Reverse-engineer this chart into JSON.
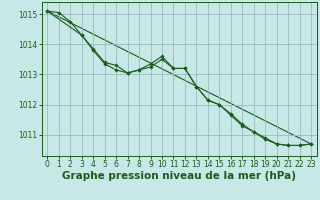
{
  "bg_color": "#c8e8e8",
  "grid_color": "#99bbbb",
  "line_color": "#1a5c1a",
  "xlabel": "Graphe pression niveau de la mer (hPa)",
  "xlabel_fontsize": 7.5,
  "tick_fontsize": 5.5,
  "xlim": [
    -0.5,
    23.5
  ],
  "ylim": [
    1010.3,
    1015.4
  ],
  "yticks": [
    1011,
    1012,
    1013,
    1014,
    1015
  ],
  "xticks": [
    0,
    1,
    2,
    3,
    4,
    5,
    6,
    7,
    8,
    9,
    10,
    11,
    12,
    13,
    14,
    15,
    16,
    17,
    18,
    19,
    20,
    21,
    22,
    23
  ],
  "line1_x": [
    0,
    1,
    2,
    3,
    4,
    5,
    6,
    7,
    8,
    9,
    10,
    11,
    12,
    13,
    14,
    15,
    16,
    17,
    18,
    19,
    20,
    21,
    22,
    23
  ],
  "line1_y": [
    1015.1,
    1015.05,
    1014.75,
    1014.3,
    1013.8,
    1013.35,
    1013.15,
    1013.05,
    1013.15,
    1013.25,
    1013.5,
    1013.2,
    1013.2,
    1012.6,
    1012.15,
    1012.0,
    1011.65,
    1011.3,
    1011.1,
    1010.85,
    1010.7,
    1010.65,
    1010.65,
    1010.7
  ],
  "line2_x": [
    0,
    3,
    4,
    5,
    6,
    7,
    8,
    9,
    10,
    11,
    12,
    13,
    14,
    15,
    16,
    17,
    18,
    19,
    20,
    21,
    22,
    23
  ],
  "line2_y": [
    1015.1,
    1014.3,
    1013.85,
    1013.4,
    1013.3,
    1013.05,
    1013.15,
    1013.35,
    1013.6,
    1013.2,
    1013.2,
    1012.6,
    1012.15,
    1012.0,
    1011.7,
    1011.35,
    1011.1,
    1010.9,
    1010.7,
    1010.65,
    1010.65,
    1010.7
  ],
  "line3_x": [
    0,
    23
  ],
  "line3_y": [
    1015.1,
    1010.7
  ]
}
